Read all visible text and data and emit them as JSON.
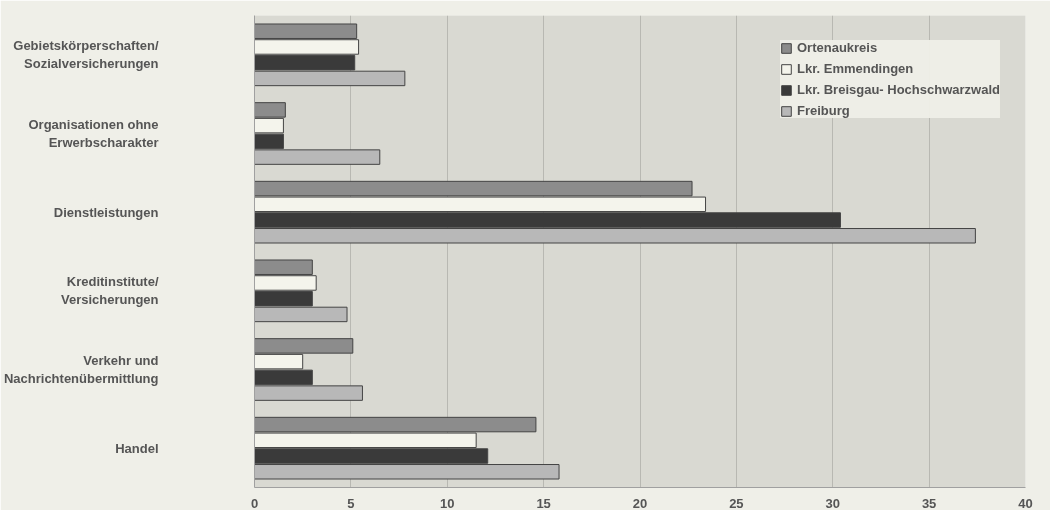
{
  "chart_data": {
    "type": "bar",
    "orientation": "horizontal",
    "categories": [
      "Gebietskörperschaften/\nSozialversicherungen",
      "Organisationen ohne\nErwerbscharakter",
      "Dienstleistungen",
      "Kreditinstitute/\nVersicherungen",
      "Verkehr und\nNachrichtenübermittlung",
      "Handel"
    ],
    "series": [
      {
        "name": "Ortenaukreis",
        "color": "#8c8c8c",
        "values": [
          5.3,
          1.6,
          22.7,
          3.0,
          5.1,
          14.6
        ]
      },
      {
        "name": "Lkr. Emmendingen",
        "color": "#f4f4ec",
        "values": [
          5.4,
          1.5,
          23.4,
          3.2,
          2.5,
          11.5
        ]
      },
      {
        "name": "Lkr. Breisgau- Hochschwarzwald",
        "color": "#3a3a3a",
        "values": [
          5.2,
          1.5,
          30.4,
          3.0,
          3.0,
          12.1
        ]
      },
      {
        "name": "Freiburg",
        "color": "#b8b8b8",
        "values": [
          7.8,
          6.5,
          37.4,
          4.8,
          5.6,
          15.8
        ]
      }
    ],
    "xlim": [
      0,
      40
    ],
    "xticks": [
      0,
      5,
      10,
      15,
      20,
      25,
      30,
      35,
      40
    ],
    "grid": "x",
    "legend": "top right"
  }
}
